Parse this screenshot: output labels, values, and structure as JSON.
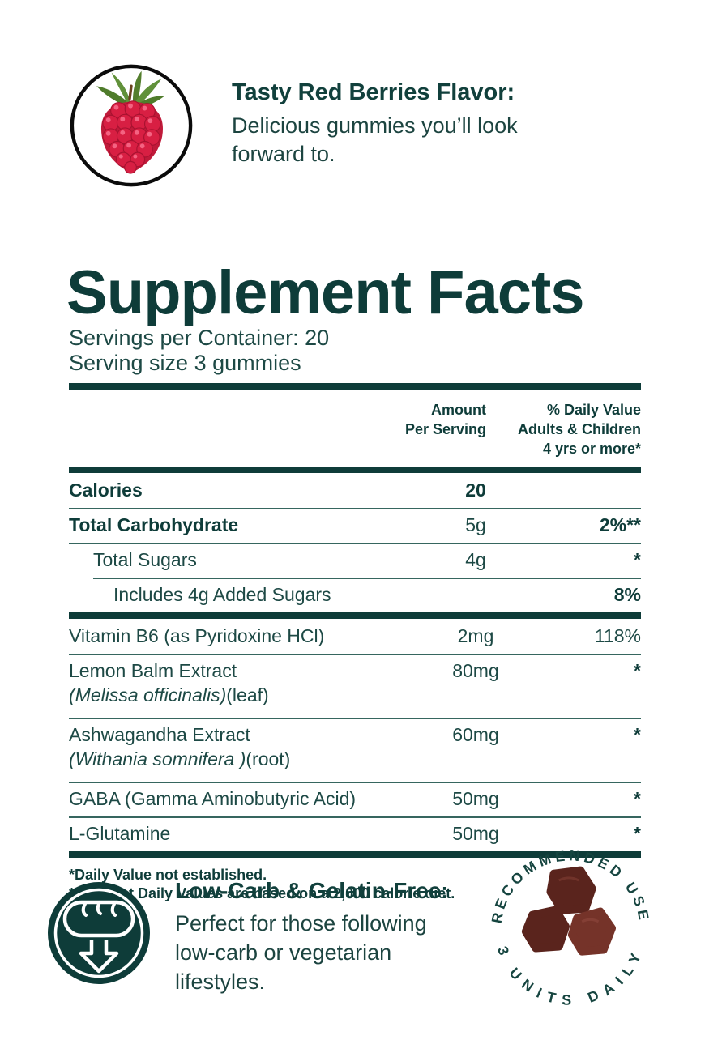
{
  "colors": {
    "teal_dark": "#0E3C39",
    "teal_text": "#1D4945",
    "rule_line": "#36665F",
    "berry_red": "#D81F43",
    "leaf_green": "#5D8A33",
    "gummy_dark": "#5A241D",
    "gummy_light": "#753329"
  },
  "flavor_callout": {
    "icon": "raspberry-image",
    "heading": "Tasty Red Berries Flavor:",
    "body_lines": [
      "Delicious gummies you’ll look",
      "forward to."
    ]
  },
  "supplement_facts": {
    "title": "Supplement Facts",
    "servings_per_container": "Servings per Container: 20",
    "serving_size": "Serving size 3 gummies",
    "header": {
      "amount_lines": [
        "Amount",
        "Per Serving"
      ],
      "dv_lines": [
        "% Daily Value",
        "Adults & Children",
        "4 yrs or more*"
      ]
    },
    "sections": [
      {
        "rows": [
          {
            "name": "Calories",
            "amount": "20",
            "dv": "",
            "indent": 0,
            "bold_name": true,
            "bold_amount": true
          },
          {
            "name": "Total Carbohydrate",
            "amount": "5g",
            "dv": "2%**",
            "indent": 0,
            "bold_name": true,
            "bold_dv": true
          },
          {
            "name": "Total Sugars",
            "amount": "4g",
            "dv": "*",
            "indent": 1,
            "bold_dv": true
          },
          {
            "name": "Includes 4g Added Sugars",
            "amount": "",
            "dv": "8%",
            "indent": 2,
            "bold_dv": true,
            "rule_indent": true
          }
        ]
      },
      {
        "rows": [
          {
            "name": "Vitamin B6 (as Pyridoxine HCl)",
            "amount": "2mg",
            "dv": "118%",
            "indent": 0
          },
          {
            "name": "Lemon Balm Extract",
            "name2_italic": "(Melissa officinalis)",
            "name2_regular": "(leaf)",
            "amount": "80mg",
            "dv": "*",
            "indent": 0,
            "bold_dv": true
          },
          {
            "name": "Ashwagandha Extract",
            "name2_italic": "(Withania somnifera )",
            "name2_regular": "(root)",
            "amount": "60mg",
            "dv": "*",
            "indent": 0,
            "bold_dv": true
          },
          {
            "name": "GABA (Gamma Aminobutyric Acid)",
            "amount": "50mg",
            "dv": "*",
            "indent": 0,
            "bold_dv": true
          },
          {
            "name": "L-Glutamine",
            "amount": "50mg",
            "dv": "*",
            "indent": 0,
            "bold_dv": true
          }
        ]
      }
    ],
    "footnotes": [
      "*Daily Value not established.",
      "**Percent Daily Values are based on a 2,000 calorie diet."
    ]
  },
  "lowcarb_callout": {
    "icon": "bread-icon",
    "heading": "Low-Carb & Gelatin-Free:",
    "body_lines": [
      "Perfect for those following",
      "low-carb or vegetarian",
      "lifestyles."
    ]
  },
  "badge": {
    "top_text": "RECOMMENDED USE",
    "bottom_text": "3 UNITS DAILY",
    "center_image": "gummies-image"
  }
}
